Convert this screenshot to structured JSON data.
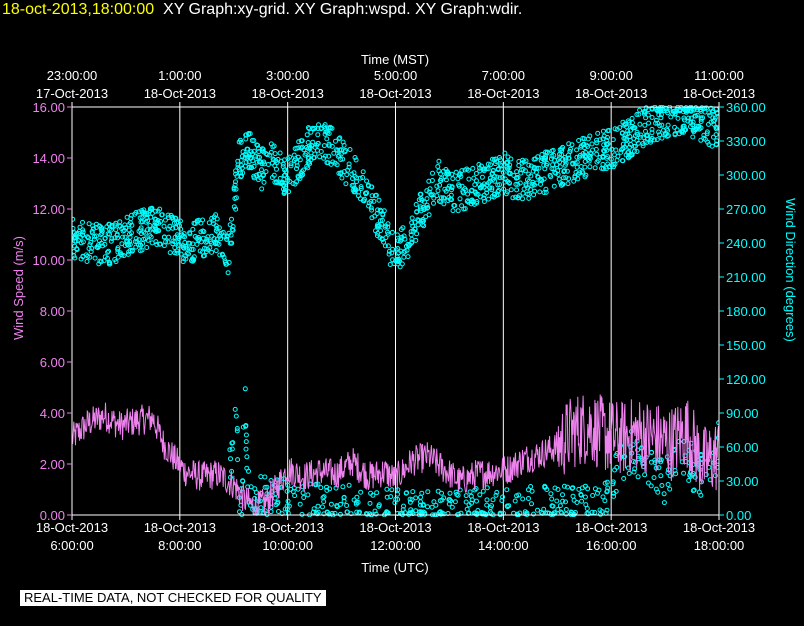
{
  "header": {
    "timestamp": "18-oct-2013,18:00:00",
    "graphs": "XY Graph:xy-grid.  XY Graph:wspd.  XY Graph:wdir."
  },
  "footer": {
    "banner": "REAL-TIME DATA, NOT CHECKED FOR QUALITY"
  },
  "colors": {
    "background": "#000000",
    "speed": "#ee82ee",
    "direction": "#00ffff",
    "grid": "#ffffff",
    "timestamp": "#ffff00"
  },
  "chart_data": {
    "type": "line",
    "top_axis": {
      "label": "Time (MST)",
      "ticks": [
        {
          "time": "23:00:00",
          "date": "17-Oct-2013"
        },
        {
          "time": "1:00:00",
          "date": "18-Oct-2013"
        },
        {
          "time": "3:00:00",
          "date": "18-Oct-2013"
        },
        {
          "time": "5:00:00",
          "date": "18-Oct-2013"
        },
        {
          "time": "7:00:00",
          "date": "18-Oct-2013"
        },
        {
          "time": "9:00:00",
          "date": "18-Oct-2013"
        },
        {
          "time": "11:00:00",
          "date": "18-Oct-2013"
        }
      ]
    },
    "bottom_axis": {
      "label": "Time (UTC)",
      "xlim": [
        "2013-10-18 06:00:00",
        "2013-10-18 18:00:00"
      ],
      "ticks": [
        {
          "date": "18-Oct-2013",
          "time": "6:00:00"
        },
        {
          "date": "18-Oct-2013",
          "time": "8:00:00"
        },
        {
          "date": "18-Oct-2013",
          "time": "10:00:00"
        },
        {
          "date": "18-Oct-2013",
          "time": "12:00:00"
        },
        {
          "date": "18-Oct-2013",
          "time": "14:00:00"
        },
        {
          "date": "18-Oct-2013",
          "time": "16:00:00"
        },
        {
          "date": "18-Oct-2013",
          "time": "18:00:00"
        }
      ]
    },
    "left_axis": {
      "label": "Wind Speed (m/s)",
      "ylim": [
        0,
        16
      ],
      "ticks": [
        "0.00",
        "2.00",
        "4.00",
        "6.00",
        "8.00",
        "10.00",
        "12.00",
        "14.00",
        "16.00"
      ]
    },
    "right_axis": {
      "label": "Wind Direction (degrees)",
      "ylim": [
        0,
        360
      ],
      "ticks": [
        "0.00",
        "30.00",
        "60.00",
        "90.00",
        "120.00",
        "150.00",
        "180.00",
        "210.00",
        "240.00",
        "270.00",
        "300.00",
        "330.00",
        "360.00"
      ]
    },
    "grid": true,
    "series": [
      {
        "axis": "left",
        "style": "line",
        "x_hours_utc": [
          6.0,
          6.3,
          6.6,
          6.9,
          7.2,
          7.5,
          7.7,
          7.9,
          8.1,
          8.4,
          8.7,
          9.0,
          9.2,
          9.4,
          9.6,
          9.8,
          10.0,
          10.3,
          10.6,
          10.9,
          11.2,
          11.5,
          11.8,
          12.0,
          12.3,
          12.6,
          12.9,
          13.2,
          13.5,
          13.8,
          14.1,
          14.4,
          14.7,
          15.0,
          15.3,
          15.6,
          15.9,
          16.2,
          16.5,
          16.8,
          17.1,
          17.4,
          17.7,
          18.0
        ],
        "values": [
          3.0,
          3.6,
          3.9,
          3.5,
          3.7,
          3.8,
          2.8,
          2.2,
          1.7,
          1.5,
          1.6,
          1.2,
          0.6,
          0.3,
          0.5,
          1.1,
          1.8,
          1.5,
          1.7,
          1.6,
          2.1,
          1.5,
          1.7,
          1.4,
          2.1,
          2.3,
          1.8,
          1.3,
          1.6,
          1.7,
          1.8,
          2.2,
          2.4,
          2.7,
          3.3,
          3.5,
          3.1,
          3.0,
          3.2,
          3.0,
          2.8,
          3.3,
          2.0,
          2.4
        ]
      },
      {
        "axis": "right",
        "style": "circles",
        "x_hours_utc": [
          6.0,
          6.3,
          6.6,
          6.9,
          7.2,
          7.5,
          7.7,
          7.9,
          8.1,
          8.4,
          8.7,
          8.9,
          9.1,
          9.3,
          9.5,
          9.7,
          9.9,
          10.1,
          10.4,
          10.7,
          11.0,
          11.3,
          11.6,
          11.8,
          12.0,
          12.2,
          12.5,
          12.8,
          13.1,
          13.4,
          13.7,
          14.0,
          14.3,
          14.6,
          14.9,
          15.2,
          15.5,
          15.8,
          16.1,
          16.4,
          16.7,
          17.0,
          17.3,
          17.6,
          17.8,
          18.0
        ],
        "values": [
          245,
          240,
          238,
          242,
          250,
          255,
          252,
          246,
          238,
          243,
          250,
          230,
          315,
          320,
          305,
          312,
          300,
          305,
          325,
          330,
          315,
          295,
          270,
          250,
          228,
          240,
          270,
          295,
          285,
          290,
          295,
          302,
          295,
          298,
          305,
          310,
          315,
          320,
          325,
          335,
          345,
          350,
          355,
          350,
          345,
          340
        ]
      },
      {
        "axis": "right",
        "style": "circles",
        "x_hours_utc": [
          8.9,
          9.0,
          9.05,
          9.1,
          9.15,
          9.2,
          9.25,
          9.3,
          9.4,
          9.5,
          11.5,
          13.0,
          15.7,
          15.9,
          16.1,
          16.4,
          16.7,
          17.0,
          17.3,
          17.6,
          17.85,
          18.0
        ],
        "values": [
          30,
          60,
          100,
          20,
          5,
          110,
          40,
          10,
          3,
          15,
          5,
          2,
          10,
          15,
          40,
          55,
          45,
          30,
          60,
          35,
          40,
          65
        ]
      }
    ]
  }
}
